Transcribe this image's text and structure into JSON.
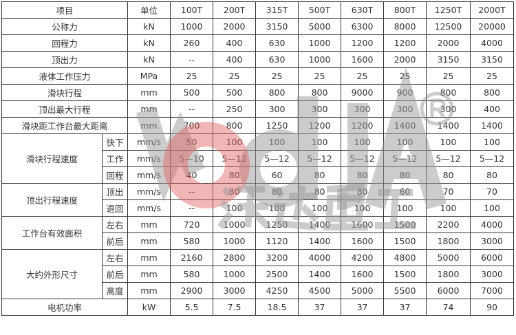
{
  "watermark": {
    "logo_text": "wodda",
    "registered": "®",
    "cn_text": "沃达重工",
    "gray": "#9a9a9a",
    "red": "#e06060"
  },
  "header": {
    "label": "项目",
    "unit": "单位",
    "models": [
      "100T",
      "200T",
      "315T",
      "500T",
      "630T",
      "800T",
      "1250T",
      "2000T"
    ]
  },
  "rows": [
    {
      "label": "公称力",
      "unit": "kN",
      "values": [
        "1000",
        "2000",
        "3150",
        "5000",
        "6300",
        "8000",
        "12500",
        "20000"
      ]
    },
    {
      "label": "回程力",
      "unit": "kN",
      "values": [
        "260",
        "400",
        "630",
        "1000",
        "1200",
        "1200",
        "2000",
        "4000"
      ]
    },
    {
      "label": "顶出力",
      "unit": "kN",
      "values": [
        "--",
        "400",
        "630",
        "1000",
        "1600",
        "2000",
        "3150",
        "3150"
      ]
    },
    {
      "label": "液体工作压力",
      "unit": "MPa",
      "values": [
        "25",
        "25",
        "25",
        "25",
        "25",
        "25",
        "25",
        "25"
      ]
    },
    {
      "label": "滑块行程",
      "unit": "mm",
      "values": [
        "500",
        "500",
        "800",
        "800",
        "9000",
        "900",
        "800",
        "800"
      ]
    },
    {
      "label": "顶出最大行程",
      "unit": "mm",
      "values": [
        "--",
        "250",
        "300",
        "300",
        "300",
        "300",
        "300",
        "400"
      ]
    },
    {
      "label": "滑块距工作台最大距离",
      "unit": "mm",
      "values": [
        "700",
        "800",
        "1250",
        "1200",
        "1200",
        "1400",
        "1400",
        "1400"
      ]
    },
    {
      "label": "滑块行程速度",
      "subs": [
        {
          "label": "快下",
          "unit": "mm/s",
          "values": [
            "50",
            "100",
            "100",
            "100",
            "100",
            "100",
            "100",
            "100"
          ]
        },
        {
          "label": "工作",
          "unit": "mm/s",
          "values": [
            "5—10",
            "5—12",
            "5—12",
            "5—12",
            "5—12",
            "5—12",
            "5—12",
            "5—12"
          ]
        },
        {
          "label": "回程",
          "unit": "mm/s",
          "values": [
            "40",
            "80",
            "60",
            "80",
            "80",
            "80",
            "80",
            "80"
          ]
        }
      ]
    },
    {
      "label": "顶出行程速度",
      "subs": [
        {
          "label": "顶出",
          "unit": "mm/s",
          "values": [
            "--",
            "80",
            "80",
            "80",
            "80",
            "60",
            "70",
            "70"
          ]
        },
        {
          "label": "退回",
          "unit": "mm/s",
          "values": [
            "--",
            "100",
            "100",
            "100",
            "100",
            "100",
            "100",
            "100"
          ]
        }
      ]
    },
    {
      "label": "工作台有效面积",
      "subs": [
        {
          "label": "左右",
          "unit": "mm",
          "values": [
            "720",
            "1000",
            "1250",
            "1400",
            "1600",
            "1500",
            "2200",
            "4000"
          ]
        },
        {
          "label": "前后",
          "unit": "mm",
          "values": [
            "580",
            "1000",
            "1120",
            "1400",
            "1600",
            "1500",
            "1800",
            "3000"
          ]
        }
      ]
    },
    {
      "label": "大约外形尺寸",
      "subs": [
        {
          "label": "左右",
          "unit": "mm",
          "values": [
            "2160",
            "2800",
            "3200",
            "4000",
            "4200",
            "4800",
            "5000",
            "6000"
          ]
        },
        {
          "label": "前后",
          "unit": "mm",
          "values": [
            "580",
            "1000",
            "2500",
            "1400",
            "1600",
            "1500",
            "1800",
            "3000"
          ]
        },
        {
          "label": "高度",
          "unit": "mm",
          "values": [
            "2900",
            "3000",
            "4250",
            "4500",
            "5000",
            "5500",
            "6000",
            "7000"
          ]
        }
      ]
    },
    {
      "label": "电机功率",
      "unit": "kW",
      "values": [
        "5.5",
        "7.5",
        "18.5",
        "37",
        "37",
        "37",
        "74",
        "90"
      ]
    }
  ]
}
